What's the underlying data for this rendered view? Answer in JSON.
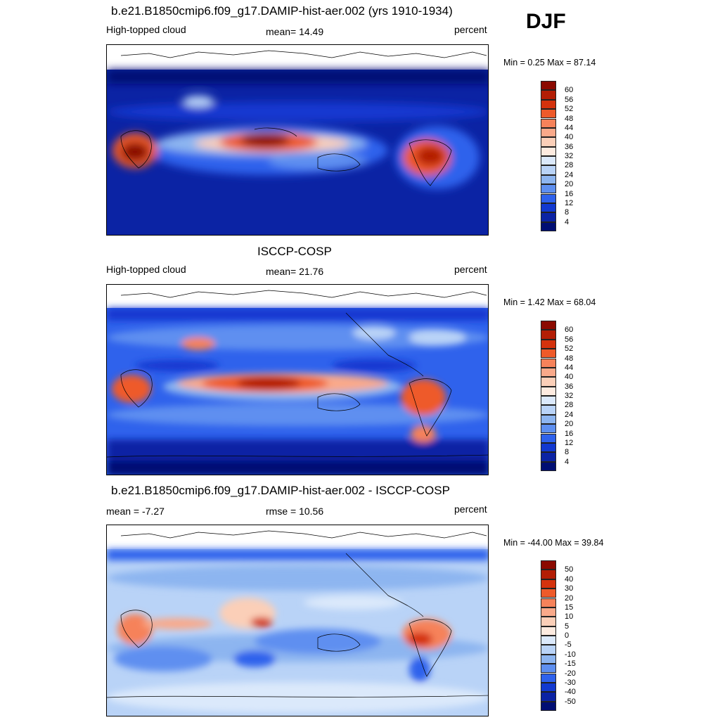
{
  "season": "DJF",
  "panels": [
    {
      "title": "b.e21.B1850cmip6.f09_g17.DAMIP-hist-aer.002 (yrs 1910-1934)",
      "left": "High-topped cloud",
      "center": "mean=  14.49",
      "right": "percent",
      "minmax": "Min =   0.25 Max =  87.14"
    },
    {
      "title": "ISCCP-COSP",
      "left": "High-topped cloud",
      "center": "mean=  21.76",
      "right": "percent",
      "minmax": "Min =   1.42 Max =  68.04"
    },
    {
      "title": "b.e21.B1850cmip6.f09_g17.DAMIP-hist-aer.002 - ISCCP-COSP",
      "left": "mean =  -7.27",
      "center": "rmse =  10.56",
      "right": "percent",
      "minmax": "Min = -44.00 Max =  39.84"
    }
  ],
  "colorbars": {
    "levels": [
      "60",
      "56",
      "52",
      "48",
      "44",
      "40",
      "36",
      "32",
      "28",
      "24",
      "20",
      "16",
      "12",
      "8",
      "4"
    ],
    "colors": [
      "#8b0a00",
      "#b31e05",
      "#d4320d",
      "#ee5a2a",
      "#f6825a",
      "#f9a98a",
      "#fbcfb8",
      "#fdebe0",
      "#dbe9fb",
      "#b9d3f7",
      "#8db5f0",
      "#5e8ff0",
      "#2f62ec",
      "#1239d0",
      "#0b23a4",
      "#000e73"
    ],
    "diff_levels": [
      "50",
      "40",
      "30",
      "20",
      "15",
      "10",
      "5",
      "0",
      "-5",
      "-10",
      "-15",
      "-20",
      "-30",
      "-40",
      "-50"
    ],
    "diff_colors": [
      "#8b0a00",
      "#b31e05",
      "#d4320d",
      "#ee5a2a",
      "#f6825a",
      "#f9a98a",
      "#fbcfb8",
      "#fdebe0",
      "#dbe9fb",
      "#b9d3f7",
      "#8db5f0",
      "#5e8ff0",
      "#2f62ec",
      "#1239d0",
      "#0b23a4",
      "#000e73"
    ]
  }
}
